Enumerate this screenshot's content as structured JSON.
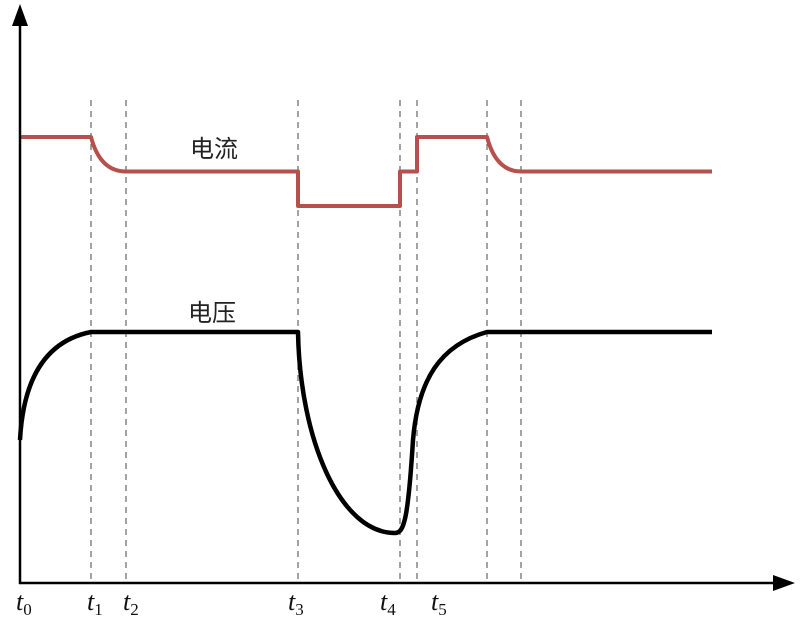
{
  "chart_data": {
    "type": "line",
    "title": "",
    "xlabel": "",
    "ylabel": "",
    "grid": false,
    "x_tick_labels": [
      {
        "base": "t",
        "sub": "0"
      },
      {
        "base": "t",
        "sub": "1"
      },
      {
        "base": "t",
        "sub": "2"
      },
      {
        "base": "t",
        "sub": "3"
      },
      {
        "base": "t",
        "sub": "4"
      },
      {
        "base": "t",
        "sub": "5"
      }
    ],
    "series": [
      {
        "name": "电流",
        "color": "#b5504c",
        "levels_note_units": "relative",
        "segments": [
          {
            "shape": "flat",
            "level": 2
          },
          {
            "shape": "decay",
            "from": 2,
            "to": 1
          },
          {
            "shape": "flat",
            "level": 1
          },
          {
            "shape": "step",
            "to": 0
          },
          {
            "shape": "flat",
            "level": 0
          },
          {
            "shape": "step",
            "to": 1
          },
          {
            "shape": "flat",
            "level": 1
          },
          {
            "shape": "step",
            "to": 2
          },
          {
            "shape": "flat",
            "level": 2
          },
          {
            "shape": "decay",
            "from": 2,
            "to": 1
          },
          {
            "shape": "flat",
            "level": 1
          }
        ]
      },
      {
        "name": "电压",
        "color": "#000000",
        "segments": [
          {
            "shape": "rise",
            "from": 0.5,
            "to": 1
          },
          {
            "shape": "flat",
            "level": 1
          },
          {
            "shape": "sag",
            "from": 1,
            "to": 0
          },
          {
            "shape": "recover",
            "from": 0,
            "to": 1
          },
          {
            "shape": "flat",
            "level": 1
          }
        ]
      }
    ]
  }
}
